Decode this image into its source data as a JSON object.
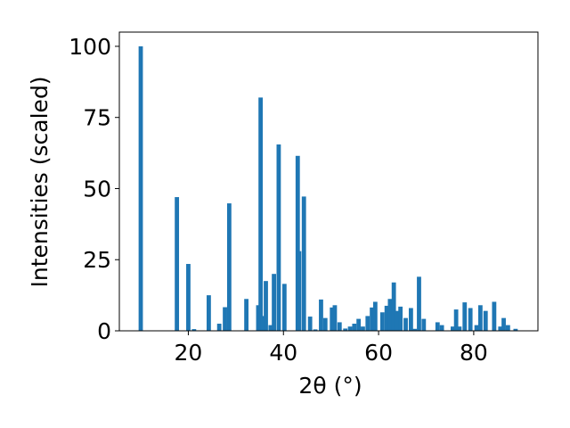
{
  "chart_data": {
    "type": "bar",
    "xlabel": "2θ (°)",
    "ylabel": "Intensities (scaled)",
    "xlim": [
      5.5,
      93.5
    ],
    "ylim": [
      0,
      105
    ],
    "x_ticks": [
      20,
      40,
      60,
      80
    ],
    "y_ticks": [
      0,
      25,
      50,
      75,
      100
    ],
    "bar_color": "#1f77b4",
    "bar_width": 0.9,
    "x": [
      10.0,
      17.6,
      20.0,
      21.2,
      24.3,
      26.5,
      27.7,
      28.6,
      32.2,
      34.7,
      35.2,
      35.7,
      36.3,
      37.3,
      38.0,
      39.0,
      40.2,
      43.0,
      43.3,
      44.3,
      45.6,
      46.7,
      47.9,
      48.8,
      50.2,
      50.8,
      51.8,
      53.0,
      54.0,
      54.9,
      55.8,
      56.7,
      57.7,
      58.6,
      59.3,
      60.8,
      61.7,
      62.4,
      63.2,
      63.8,
      64.6,
      65.7,
      66.8,
      67.6,
      68.5,
      69.5,
      72.4,
      73.3,
      75.6,
      76.3,
      77.0,
      78.1,
      79.3,
      80.6,
      81.4,
      82.5,
      84.3,
      85.6,
      86.3,
      87.2,
      88.8
    ],
    "values": [
      100.0,
      47.0,
      23.5,
      0.6,
      12.5,
      2.5,
      8.3,
      44.8,
      11.2,
      9.0,
      82.0,
      5.2,
      17.5,
      2.0,
      20.0,
      65.5,
      16.5,
      61.5,
      28.0,
      47.2,
      5.0,
      0.5,
      11.0,
      4.5,
      8.2,
      9.0,
      3.0,
      0.8,
      1.5,
      2.5,
      4.2,
      1.5,
      5.2,
      8.2,
      10.2,
      6.5,
      8.8,
      11.2,
      17.0,
      7.0,
      8.5,
      4.5,
      8.0,
      0.7,
      19.0,
      4.2,
      3.0,
      2.0,
      1.5,
      7.5,
      1.5,
      10.0,
      8.0,
      2.0,
      9.0,
      7.0,
      10.2,
      1.5,
      4.5,
      2.0,
      0.7
    ]
  }
}
